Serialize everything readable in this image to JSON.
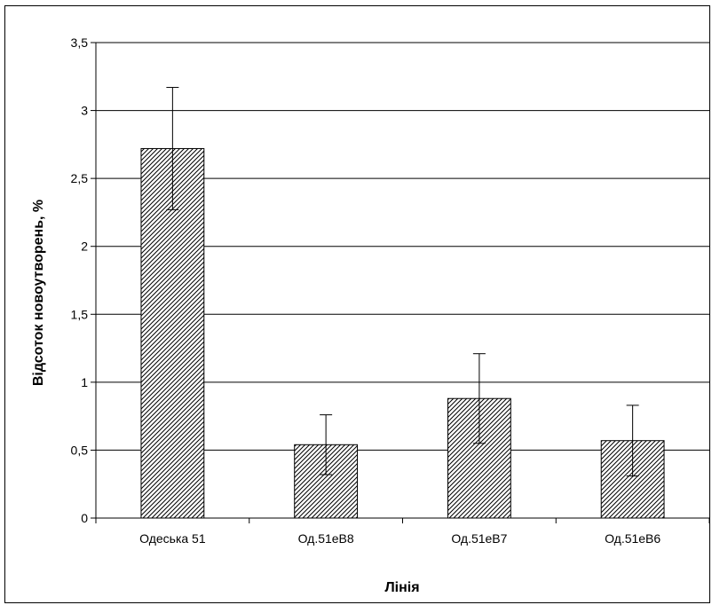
{
  "chart_data": {
    "type": "bar",
    "categories": [
      "Одеська 51",
      "Од.51еВ8",
      "Од.51еВ7",
      "Од.51еВ6"
    ],
    "series": [
      {
        "values": [
          2.72,
          0.54,
          0.88,
          0.57
        ],
        "error": [
          0.45,
          0.22,
          0.33,
          0.26
        ]
      }
    ],
    "xlabel": "Лінія",
    "ylabel": "Відсоток новоутворень, %",
    "ylim": [
      0,
      3.5
    ],
    "yticks": [
      0,
      0.5,
      1,
      1.5,
      2,
      2.5,
      3,
      3.5
    ],
    "ytick_labels": [
      "0",
      "0,5",
      "1",
      "1,5",
      "2",
      "2,5",
      "3",
      "3,5"
    ],
    "grid": "horizontal",
    "legend": "none",
    "bar_fill": "diagonal-hatch",
    "colors": {
      "bar_fill": "#ffffff",
      "hatch": "#000000",
      "axis": "#000000",
      "grid": "#000000"
    }
  }
}
